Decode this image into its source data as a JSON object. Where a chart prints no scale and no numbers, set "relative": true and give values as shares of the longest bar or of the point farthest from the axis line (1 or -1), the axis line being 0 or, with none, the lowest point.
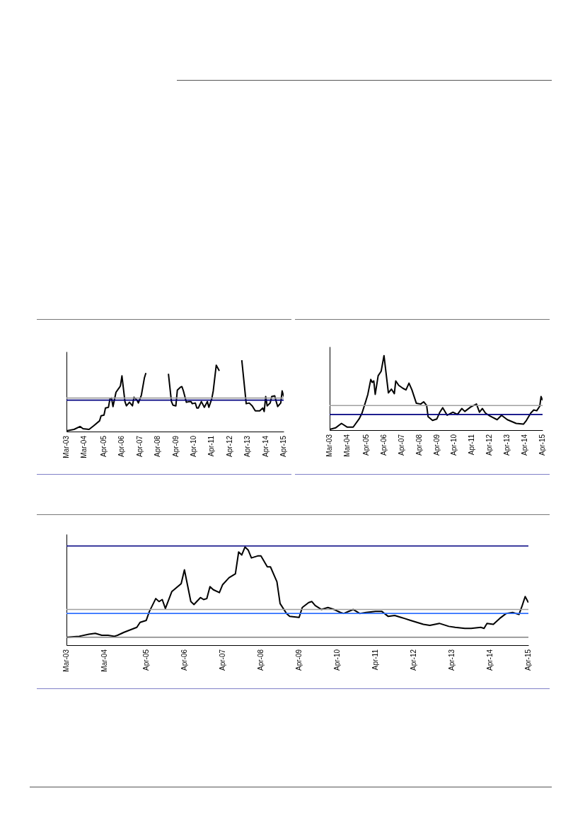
{
  "chart_data": [
    {
      "type": "line",
      "relative": true,
      "xlim": [
        "2003-03",
        "2015-04"
      ],
      "xticks": [
        {
          "value": "2003-03",
          "label": "Mar-03"
        },
        {
          "value": "2004-03",
          "label": "Mar-04"
        },
        {
          "value": "2005-04",
          "label": "Apr-05"
        },
        {
          "value": "2006-04",
          "label": "Apr-06"
        },
        {
          "value": "2007-04",
          "label": "Apr-07"
        },
        {
          "value": "2008-04",
          "label": "Apr-08"
        },
        {
          "value": "2009-04",
          "label": "Apr-09"
        },
        {
          "value": "2010-04",
          "label": "Apr-10"
        },
        {
          "value": "2011-04",
          "label": "Apr-11"
        },
        {
          "value": "2012-04",
          "label": "Apr-12"
        },
        {
          "value": "2013-04",
          "label": "Apr-13"
        },
        {
          "value": "2014-04",
          "label": "Apr-14"
        },
        {
          "value": "2015-04",
          "label": "Apr-15"
        }
      ],
      "x": [
        "2003-03",
        "2003-08",
        "2003-12",
        "2004-02",
        "2004-06",
        "2004-09",
        "2005-01",
        "2005-02",
        "2005-04",
        "2005-05",
        "2005-07",
        "2005-08",
        "2005-09",
        "2005-10",
        "2005-12",
        "2006-02",
        "2006-03",
        "2006-04",
        "2006-06",
        "2006-07",
        "2006-09",
        "2006-11",
        "2006-12",
        "2007-02",
        "2007-03",
        "2007-05",
        "2007-07",
        "2007-08",
        "2008-03",
        "2008-11",
        "2009-01",
        "2009-02",
        "2009-04",
        "2009-05",
        "2009-07",
        "2009-08",
        "2009-09",
        "2009-11",
        "2010-01",
        "2010-02",
        "2010-03",
        "2010-05",
        "2010-06",
        "2010-07",
        "2010-09",
        "2010-11",
        "2011-01",
        "2011-02",
        "2011-04",
        "2011-05",
        "2011-07",
        "2011-09",
        "2012-05",
        "2012-12",
        "2013-03",
        "2013-05",
        "2013-07",
        "2013-09",
        "2013-12",
        "2014-02",
        "2014-03",
        "2014-04",
        "2014-05",
        "2014-07",
        "2014-08",
        "2014-10",
        "2014-11",
        "2014-12",
        "2015-02",
        "2015-03",
        "2015-04"
      ],
      "series": [
        {
          "color": "#000000",
          "values": [
            0.01,
            0.03,
            0.07,
            0.04,
            0.03,
            0.08,
            0.15,
            0.22,
            0.23,
            0.33,
            0.34,
            0.46,
            0.47,
            0.35,
            0.55,
            0.61,
            0.64,
            0.78,
            0.42,
            0.36,
            0.41,
            0.36,
            0.48,
            0.44,
            0.4,
            0.51,
            0.75,
            0.82,
            null,
            0.81,
            0.42,
            0.37,
            0.36,
            0.58,
            0.62,
            0.63,
            0.57,
            0.41,
            0.42,
            0.42,
            0.39,
            0.4,
            0.33,
            0.33,
            0.42,
            0.34,
            0.42,
            0.34,
            0.46,
            0.57,
            0.93,
            0.85,
            null,
            1,
            0.39,
            0.4,
            0.36,
            0.29,
            0.29,
            0.33,
            0.28,
            0.49,
            0.36,
            0.4,
            0.49,
            0.5,
            0.42,
            0.35,
            0.4,
            0.57,
            0.49
          ]
        },
        {
          "color": "#000080",
          "x": [
            "2003-03",
            "2015-04"
          ],
          "values": [
            0.44,
            0.44
          ]
        },
        {
          "color": "#a0a0a0",
          "x": [
            "2003-03",
            "2015-04"
          ],
          "values": [
            0.47,
            0.47
          ]
        }
      ]
    },
    {
      "type": "line",
      "relative": true,
      "xlim": [
        "2003-03",
        "2015-04"
      ],
      "xticks": [
        {
          "value": "2003-03",
          "label": "Mar-03"
        },
        {
          "value": "2004-03",
          "label": "Mar-04"
        },
        {
          "value": "2005-04",
          "label": "Apr-05"
        },
        {
          "value": "2006-04",
          "label": "Apr-06"
        },
        {
          "value": "2007-04",
          "label": "Apr-07"
        },
        {
          "value": "2008-04",
          "label": "Apr-08"
        },
        {
          "value": "2009-04",
          "label": "Apr-09"
        },
        {
          "value": "2010-04",
          "label": "Apr-10"
        },
        {
          "value": "2011-04",
          "label": "Apr-11"
        },
        {
          "value": "2012-04",
          "label": "Apr-12"
        },
        {
          "value": "2013-04",
          "label": "Apr-13"
        },
        {
          "value": "2014-04",
          "label": "Apr-14"
        },
        {
          "value": "2015-04",
          "label": "Apr-15"
        }
      ],
      "x": [
        "2003-03",
        "2003-07",
        "2003-11",
        "2004-03",
        "2004-07",
        "2004-11",
        "2005-01",
        "2005-03",
        "2005-05",
        "2005-07",
        "2005-08",
        "2005-09",
        "2005-10",
        "2005-12",
        "2006-02",
        "2006-04",
        "2006-07",
        "2006-09",
        "2006-11",
        "2006-12",
        "2007-02",
        "2007-05",
        "2007-07",
        "2007-09",
        "2007-11",
        "2007-12",
        "2008-02",
        "2008-05",
        "2008-07",
        "2008-09",
        "2008-10",
        "2009-01",
        "2009-04",
        "2009-06",
        "2009-08",
        "2009-11",
        "2010-03",
        "2010-06",
        "2010-09",
        "2010-11",
        "2011-03",
        "2011-07",
        "2011-09",
        "2011-11",
        "2012-01",
        "2012-04",
        "2012-09",
        "2012-12",
        "2013-04",
        "2013-10",
        "2014-03",
        "2014-05",
        "2014-08",
        "2014-10",
        "2014-12",
        "2015-02",
        "2015-03",
        "2015-04"
      ],
      "series": [
        {
          "color": "#000000",
          "values": [
            0.01,
            0.03,
            0.09,
            0.04,
            0.04,
            0.15,
            0.23,
            0.35,
            0.48,
            0.68,
            0.64,
            0.66,
            0.48,
            0.73,
            0.79,
            1,
            0.5,
            0.55,
            0.49,
            0.66,
            0.6,
            0.56,
            0.54,
            0.63,
            0.54,
            0.48,
            0.36,
            0.35,
            0.38,
            0.33,
            0.18,
            0.13,
            0.15,
            0.24,
            0.3,
            0.2,
            0.24,
            0.21,
            0.29,
            0.25,
            0.31,
            0.35,
            0.24,
            0.29,
            0.23,
            0.19,
            0.14,
            0.2,
            0.14,
            0.09,
            0.08,
            0.13,
            0.23,
            0.27,
            0.26,
            0.32,
            0.45,
            0.4
          ]
        },
        {
          "color": "#000080",
          "x": [
            "2003-03",
            "2015-04"
          ],
          "values": [
            0.21,
            0.21
          ]
        },
        {
          "color": "#a0a0a0",
          "x": [
            "2003-03",
            "2015-04"
          ],
          "values": [
            0.33,
            0.33
          ]
        }
      ]
    },
    {
      "type": "line",
      "relative": true,
      "xlim": [
        "2003-03",
        "2015-04"
      ],
      "xticks": [
        {
          "value": "2003-03",
          "label": "Mar-03"
        },
        {
          "value": "2004-03",
          "label": "Mar-04"
        },
        {
          "value": "2005-04",
          "label": "Apr-05"
        },
        {
          "value": "2006-04",
          "label": "Apr-06"
        },
        {
          "value": "2007-04",
          "label": "Apr-07"
        },
        {
          "value": "2008-04",
          "label": "Apr-08"
        },
        {
          "value": "2009-04",
          "label": "Apr-09"
        },
        {
          "value": "2010-04",
          "label": "Apr-10"
        },
        {
          "value": "2011-04",
          "label": "Apr-11"
        },
        {
          "value": "2012-04",
          "label": "Apr-12"
        },
        {
          "value": "2013-04",
          "label": "Apr-13"
        },
        {
          "value": "2014-04",
          "label": "Apr-14"
        },
        {
          "value": "2015-04",
          "label": "Apr-15"
        }
      ],
      "x": [
        "2003-03",
        "2003-07",
        "2003-10",
        "2003-12",
        "2004-02",
        "2004-04",
        "2004-06",
        "2004-07",
        "2004-09",
        "2005-01",
        "2005-02",
        "2005-04",
        "2005-05",
        "2005-07",
        "2005-08",
        "2005-09",
        "2005-10",
        "2005-12",
        "2006-03",
        "2006-04",
        "2006-06",
        "2006-07",
        "2006-09",
        "2006-10",
        "2006-11",
        "2006-12",
        "2007-01",
        "2007-03",
        "2007-04",
        "2007-06",
        "2007-08",
        "2007-09",
        "2007-10",
        "2007-11",
        "2007-12",
        "2008-01",
        "2008-03",
        "2008-04",
        "2008-06",
        "2008-07",
        "2008-09",
        "2008-10",
        "2008-12",
        "2009-01",
        "2009-04",
        "2009-05",
        "2009-07",
        "2009-08",
        "2009-09",
        "2009-11",
        "2010-01",
        "2010-03",
        "2010-05",
        "2010-06",
        "2010-09",
        "2010-11",
        "2011-01",
        "2011-04",
        "2011-06",
        "2011-08",
        "2011-10",
        "2011-12",
        "2012-01",
        "2012-03",
        "2012-07",
        "2012-09",
        "2012-12",
        "2013-03",
        "2013-05",
        "2013-08",
        "2013-10",
        "2014-01",
        "2014-02",
        "2014-03",
        "2014-05",
        "2014-07",
        "2014-09",
        "2014-11",
        "2015-01",
        "2015-02",
        "2015-03",
        "2015-04"
      ],
      "series": [
        {
          "color": "#000000",
          "values": [
            0.08,
            0.09,
            0.11,
            0.12,
            0.1,
            0.1,
            0.09,
            0.1,
            0.13,
            0.18,
            0.23,
            0.25,
            0.34,
            0.47,
            0.44,
            0.46,
            0.37,
            0.54,
            0.62,
            0.76,
            0.44,
            0.41,
            0.48,
            0.46,
            0.47,
            0.59,
            0.56,
            0.53,
            0.61,
            0.68,
            0.72,
            0.94,
            0.91,
            0.99,
            0.96,
            0.88,
            0.9,
            0.9,
            0.79,
            0.79,
            0.64,
            0.42,
            0.32,
            0.29,
            0.28,
            0.38,
            0.43,
            0.44,
            0.4,
            0.36,
            0.38,
            0.36,
            0.33,
            0.32,
            0.36,
            0.32,
            0.33,
            0.34,
            0.34,
            0.29,
            0.3,
            0.28,
            0.27,
            0.25,
            0.21,
            0.2,
            0.22,
            0.19,
            0.18,
            0.17,
            0.17,
            0.18,
            0.17,
            0.22,
            0.21,
            0.27,
            0.32,
            0.33,
            0.31,
            0.4,
            0.49,
            0.43
          ]
        },
        {
          "color": "#000080",
          "x": [
            "2003-03",
            "2015-04"
          ],
          "values": [
            1,
            1
          ]
        },
        {
          "color": "#a0a0a0",
          "x": [
            "2003-03",
            "2015-04"
          ],
          "values": [
            0.36,
            0.36
          ]
        },
        {
          "color": "#3070ff",
          "x": [
            "2003-03",
            "2015-04"
          ],
          "values": [
            0.32,
            0.32
          ]
        },
        {
          "color": "#808080",
          "x": [
            "2003-03",
            "2015-04"
          ],
          "values": [
            0.08,
            0.08
          ]
        }
      ]
    }
  ]
}
